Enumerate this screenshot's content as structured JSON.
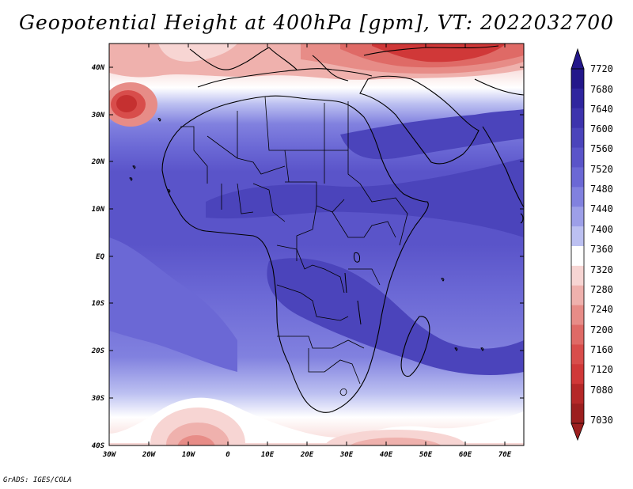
{
  "title": "Geopotential Height at 400hPa [gpm], VT: 2022032700",
  "footer": "GrADS: IGES/COLA",
  "map": {
    "region": "Africa",
    "projection": "lat-lon",
    "lon_range": [
      -30,
      75
    ],
    "lat_range": [
      -40,
      45
    ],
    "coastlines": true,
    "country_borders": true
  },
  "axes": {
    "y_ticks": [
      "40N",
      "30N",
      "20N",
      "10N",
      "EQ",
      "10S",
      "20S",
      "30S",
      "40S"
    ],
    "x_ticks": [
      "30W",
      "20W",
      "10W",
      "0",
      "10E",
      "20E",
      "30E",
      "40E",
      "50E",
      "60E",
      "70E"
    ]
  },
  "colorbar": {
    "levels": [
      "7720",
      "7680",
      "7640",
      "7600",
      "7560",
      "7520",
      "7480",
      "7440",
      "7400",
      "7360",
      "7320",
      "7280",
      "7240",
      "7200",
      "7160",
      "7120",
      "7080",
      "7030"
    ],
    "colors": [
      "#23178a",
      "#2f259e",
      "#3d33ad",
      "#4b44bb",
      "#5a54c9",
      "#6b68d5",
      "#8181df",
      "#9d9fe8",
      "#bcc0f1",
      "#ffffff",
      "#f7d5d3",
      "#efb1ad",
      "#e78c87",
      "#df6a66",
      "#d84d4b",
      "#d03838",
      "#b52828",
      "#9c1f1f"
    ],
    "extend": "both"
  }
}
